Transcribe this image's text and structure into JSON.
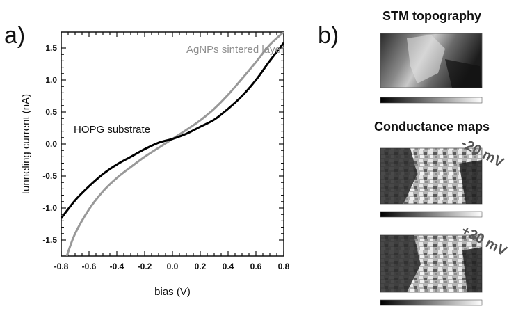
{
  "panels": {
    "a": "a)",
    "b": "b)"
  },
  "chart_data": {
    "type": "line",
    "xlabel": "bias (V)",
    "ylabel": "tunneling current (nA)",
    "xlim": [
      -0.8,
      0.8
    ],
    "ylim": [
      -1.75,
      1.75
    ],
    "xticks": [
      "-0.8",
      "-0.6",
      "-0.4",
      "-0.2",
      "0.0",
      "0.2",
      "0.4",
      "0.6",
      "0.8"
    ],
    "yticks": [
      "-1.5",
      "-1.0",
      "-0.5",
      "0.0",
      "0.5",
      "1.0",
      "1.5"
    ],
    "grid": false,
    "series": [
      {
        "name": "HOPG substrate",
        "color": "#000000",
        "x": [
          -0.8,
          -0.7,
          -0.6,
          -0.5,
          -0.4,
          -0.3,
          -0.2,
          -0.1,
          0.0,
          0.1,
          0.2,
          0.3,
          0.4,
          0.5,
          0.6,
          0.7,
          0.8
        ],
        "y": [
          -1.16,
          -0.88,
          -0.66,
          -0.47,
          -0.32,
          -0.2,
          -0.08,
          0.02,
          0.08,
          0.16,
          0.27,
          0.38,
          0.55,
          0.75,
          1.0,
          1.3,
          1.58
        ]
      },
      {
        "name": "AgNPs sintered layer",
        "color": "#999999",
        "x": [
          -0.76,
          -0.7,
          -0.6,
          -0.5,
          -0.4,
          -0.3,
          -0.2,
          -0.1,
          0.0,
          0.1,
          0.2,
          0.3,
          0.4,
          0.5,
          0.6,
          0.7,
          0.8
        ],
        "y": [
          -1.75,
          -1.4,
          -1.02,
          -0.74,
          -0.53,
          -0.36,
          -0.2,
          -0.06,
          0.08,
          0.22,
          0.37,
          0.55,
          0.77,
          1.02,
          1.28,
          1.55,
          1.75
        ]
      }
    ]
  },
  "side": {
    "topography_title": "STM topography",
    "conductance_title": "Conductance maps",
    "map1_label": "-20 mV",
    "map2_label": "+20 mV"
  }
}
